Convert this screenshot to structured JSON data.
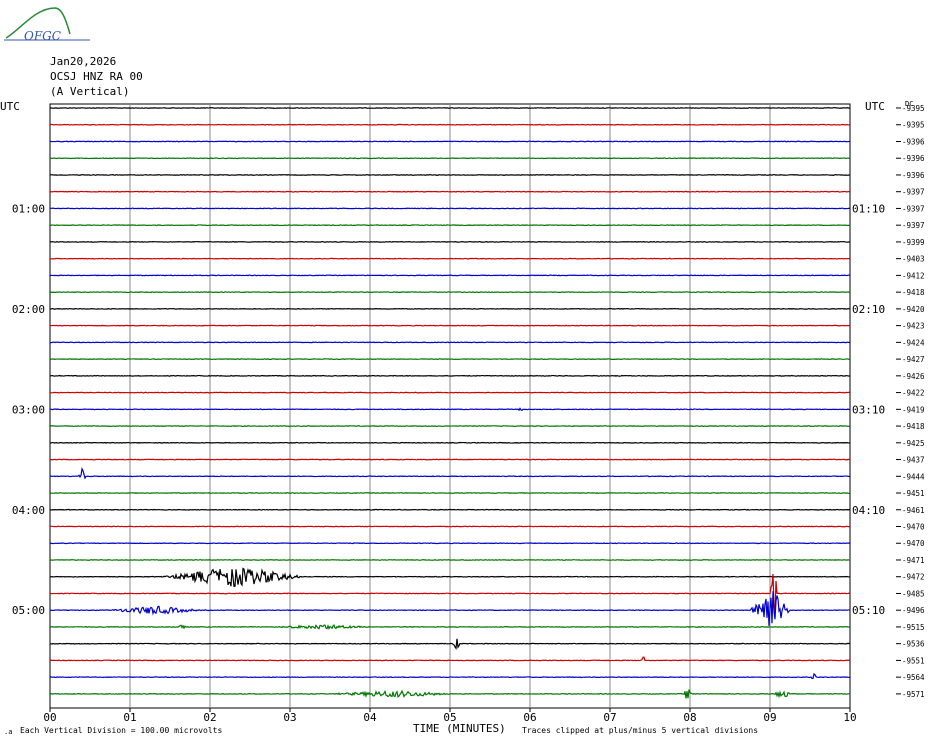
{
  "logo": {
    "text": "OFGC"
  },
  "header": {
    "date": "Jan20,2026",
    "station": "OCSJ HNZ RA 00",
    "component": "(A Vertical)"
  },
  "left_axis_label": "UTC",
  "right_axis_label": "UTC",
  "right_header_label": "DC",
  "footer": {
    "scale_note": "Each Vertical Division = 100.00 microvolts",
    "x_axis_title": "TIME (MINUTES)",
    "clip_note": "Traces clipped at plus/minus 5 vertical divisions"
  },
  "colors": {
    "trace_cycle": [
      "#000000",
      "#cc0000",
      "#0000cc",
      "#007700"
    ],
    "grid": "#888888"
  },
  "chart_data": {
    "type": "line",
    "x_ticks": [
      "00",
      "01",
      "02",
      "03",
      "04",
      "05",
      "06",
      "07",
      "08",
      "09",
      "10"
    ],
    "xlim": [
      0,
      10
    ],
    "left_time_labels": [
      {
        "trace_index": 6,
        "label": "01:00"
      },
      {
        "trace_index": 12,
        "label": "02:00"
      },
      {
        "trace_index": 18,
        "label": "03:00"
      },
      {
        "trace_index": 24,
        "label": "04:00"
      },
      {
        "trace_index": 30,
        "label": "05:00"
      }
    ],
    "right_time_labels": [
      {
        "trace_index": 6,
        "label": "01:10"
      },
      {
        "trace_index": 12,
        "label": "02:10"
      },
      {
        "trace_index": 18,
        "label": "03:10"
      },
      {
        "trace_index": 24,
        "label": "04:10"
      },
      {
        "trace_index": 30,
        "label": "05:10"
      }
    ],
    "dc_offsets": [
      "-9395",
      "-9395",
      "-9396",
      "-9396",
      "-9396",
      "-9397",
      "-9397",
      "-9397",
      "-9399",
      "-9403",
      "-9412",
      "-9418",
      "-9420",
      "-9423",
      "-9424",
      "-9427",
      "-9426",
      "-9422",
      "-9419",
      "-9418",
      "-9425",
      "-9437",
      "-9444",
      "-9451",
      "-9461",
      "-9470",
      "-9470",
      "-9471",
      "-9472",
      "-9485",
      "-9496",
      "-9515",
      "-9536",
      "-9551",
      "-9564",
      "-9571"
    ],
    "trace_count": 36,
    "events": [
      {
        "trace_index": 18,
        "minute": 5.88,
        "amplitude": 0.35,
        "duration": 0.04
      },
      {
        "trace_index": 22,
        "minute": 0.4,
        "amplitude": 0.5,
        "duration": 0.05
      },
      {
        "trace_index": 28,
        "minute": 2.3,
        "amplitude": 0.6,
        "duration": 0.9
      },
      {
        "trace_index": 29,
        "minute": 9.05,
        "amplitude": 1.6,
        "duration": 0.05
      },
      {
        "trace_index": 30,
        "minute": 1.3,
        "amplitude": 0.25,
        "duration": 0.6
      },
      {
        "trace_index": 30,
        "minute": 9.0,
        "amplitude": 1.5,
        "duration": 0.25
      },
      {
        "trace_index": 31,
        "minute": 1.65,
        "amplitude": 0.25,
        "duration": 0.05
      },
      {
        "trace_index": 31,
        "minute": 3.4,
        "amplitude": 0.15,
        "duration": 0.6
      },
      {
        "trace_index": 32,
        "minute": 5.08,
        "amplitude": 0.35,
        "duration": 0.05
      },
      {
        "trace_index": 33,
        "minute": 7.42,
        "amplitude": 0.25,
        "duration": 0.04
      },
      {
        "trace_index": 34,
        "minute": 9.55,
        "amplitude": 0.2,
        "duration": 0.04
      },
      {
        "trace_index": 35,
        "minute": 4.3,
        "amplitude": 0.2,
        "duration": 0.8
      },
      {
        "trace_index": 35,
        "minute": 7.97,
        "amplitude": 0.45,
        "duration": 0.05
      },
      {
        "trace_index": 35,
        "minute": 9.15,
        "amplitude": 0.35,
        "duration": 0.1
      }
    ]
  }
}
